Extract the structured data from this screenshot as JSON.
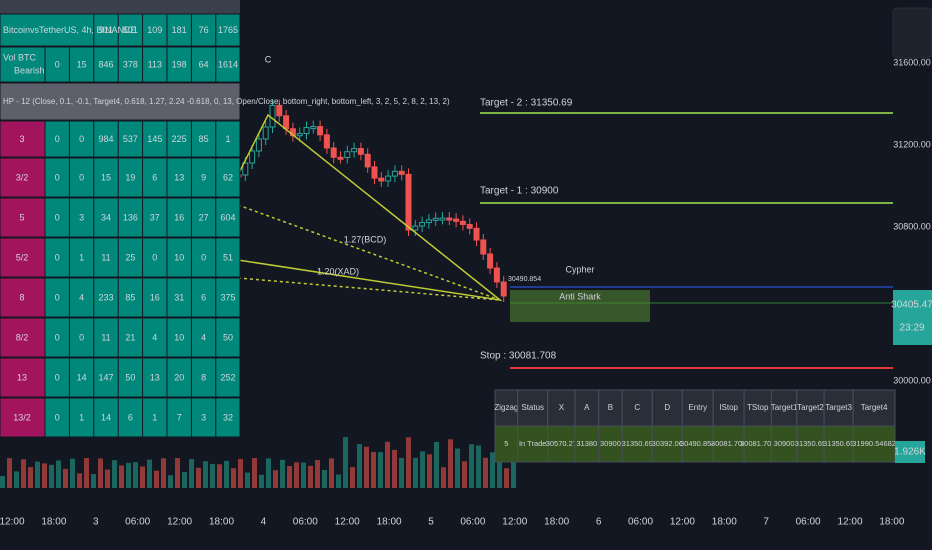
{
  "left_table": {
    "rows": [
      {
        "label": "BitcoinvsTetherUS, 4h, BINANCE",
        "cells": [
          "911",
          "501",
          "109",
          "181",
          "76",
          "1765"
        ]
      },
      {
        "label": "Vol BTC",
        "sublabel": "Bearish",
        "cells": [
          "0",
          "15",
          "846",
          "378",
          "113",
          "198",
          "64",
          "1614"
        ]
      },
      {
        "label": "HP - 12 (Close, 0.1, -0.1, Target4, 0.618, 1.27, 2.24 -0.618, 0, 13, Open/Close, bottom_right, bottom_left, 3, 2, 5, 2, 8, 2, 13, 2)",
        "cells": []
      },
      {
        "label": "3",
        "cells": [
          "0",
          "0",
          "984",
          "537",
          "145",
          "225",
          "85",
          "1"
        ]
      },
      {
        "label": "3/2",
        "cells": [
          "0",
          "0",
          "15",
          "19",
          "6",
          "13",
          "9",
          "62"
        ]
      },
      {
        "label": "5",
        "cells": [
          "0",
          "3",
          "34",
          "136",
          "37",
          "16",
          "27",
          "604"
        ]
      },
      {
        "label": "5/2",
        "cells": [
          "0",
          "1",
          "11",
          "25",
          "0",
          "10",
          "0",
          "51"
        ]
      },
      {
        "label": "8",
        "cells": [
          "0",
          "4",
          "233",
          "85",
          "16",
          "31",
          "6",
          "375"
        ]
      },
      {
        "label": "8/2",
        "cells": [
          "0",
          "0",
          "11",
          "21",
          "4",
          "10",
          "4",
          "50"
        ]
      },
      {
        "label": "13",
        "cells": [
          "0",
          "14",
          "147",
          "50",
          "13",
          "20",
          "8",
          "252"
        ]
      },
      {
        "label": "13/2",
        "cells": [
          "0",
          "1",
          "14",
          "6",
          "1",
          "7",
          "3",
          "32"
        ]
      }
    ]
  },
  "pattern_table": {
    "header": [
      "Zigzag",
      "Status",
      "X",
      "A",
      "B",
      "C",
      "D",
      "Entry",
      "IStop",
      "TStop",
      "Target1",
      "Target2",
      "Target3",
      "Target4"
    ],
    "row": [
      "5",
      "In Trade",
      "30570.27",
      "31380",
      "30900",
      "31350.69",
      "30392.06",
      "30490.854",
      "30081.708",
      "30081.708",
      "30900",
      "31350.69",
      "31350.69",
      "31990.54682"
    ]
  },
  "chart_labels": {
    "target2": "Target - 2 : 31350.69",
    "target1": "Target - 1 : 30900",
    "stop": "Stop : 30081.708",
    "entry": "30490.854",
    "pattern1": "Cypher",
    "pattern2": "Anti Shark",
    "bcd": "1.27(BCD)",
    "xad": "1.20(XAD)",
    "point_c": "C"
  },
  "price_axis": [
    "31600.00",
    "31200.00",
    "30800.00",
    "30000.00"
  ],
  "price_tag": {
    "price": "30405.47",
    "countdown": "23:29"
  },
  "volume_tag": "1.926K",
  "time_axis": [
    "12:00",
    "18:00",
    "3",
    "06:00",
    "12:00",
    "18:00",
    "4",
    "06:00",
    "12:00",
    "18:00",
    "5",
    "06:00",
    "12:00",
    "18:00",
    "6",
    "06:00",
    "12:00",
    "18:00",
    "7",
    "06:00",
    "12:00",
    "18:00"
  ]
}
